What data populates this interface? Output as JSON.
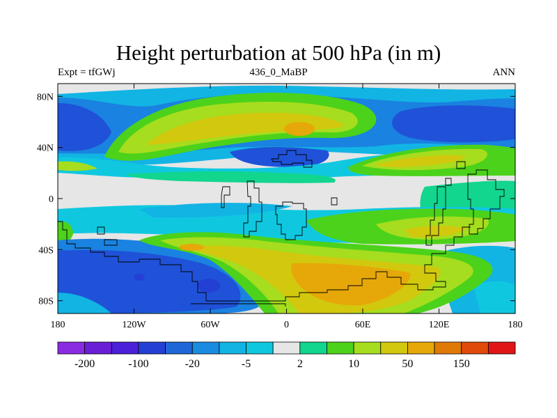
{
  "title": "Height perturbation at 500 hPa (in m)",
  "left_string": "Expt = tfGWj",
  "center_string": "436_0_MaBP",
  "right_string": "ANN",
  "map": {
    "lon_range": [
      -180,
      180
    ],
    "lat_range": [
      -90,
      90
    ],
    "lon_ticks": [
      {
        "value": -180,
        "label": "180"
      },
      {
        "value": -120,
        "label": "120W"
      },
      {
        "value": -60,
        "label": "60W"
      },
      {
        "value": 0,
        "label": "0"
      },
      {
        "value": 60,
        "label": "60E"
      },
      {
        "value": 120,
        "label": "120E"
      },
      {
        "value": 180,
        "label": "180"
      }
    ],
    "lat_ticks": [
      {
        "value": 80,
        "label": "80N"
      },
      {
        "value": 40,
        "label": "40N"
      },
      {
        "value": 0,
        "label": "0"
      },
      {
        "value": -40,
        "label": "40S"
      },
      {
        "value": -80,
        "label": "80S"
      }
    ],
    "background_color": "#e6e6e6"
  },
  "colorbar": {
    "colors": [
      "#8a2be2",
      "#6a1fd6",
      "#4b20d8",
      "#2440d4",
      "#1f66d6",
      "#1a8ce0",
      "#12b4e4",
      "#0fc8e0",
      "#e6e6e6",
      "#12d58e",
      "#4cd21a",
      "#a6dd1e",
      "#d2c80e",
      "#e6a808",
      "#e07a06",
      "#e04a0a",
      "#e01616"
    ],
    "labels": [
      "-200",
      "-100",
      "-20",
      "-5",
      "2",
      "10",
      "50",
      "150"
    ]
  },
  "color_key": {
    "deep_blue": "#1f52d8",
    "blue": "#1a82e0",
    "light_blue": "#12b4e4",
    "cyan": "#0fc8e0",
    "neutral": "#e6e6e6",
    "green_teal": "#12d58e",
    "green": "#4cd21a",
    "yellow_green": "#a6dd1e",
    "yellow": "#d2c80e",
    "orange": "#e6a808"
  }
}
